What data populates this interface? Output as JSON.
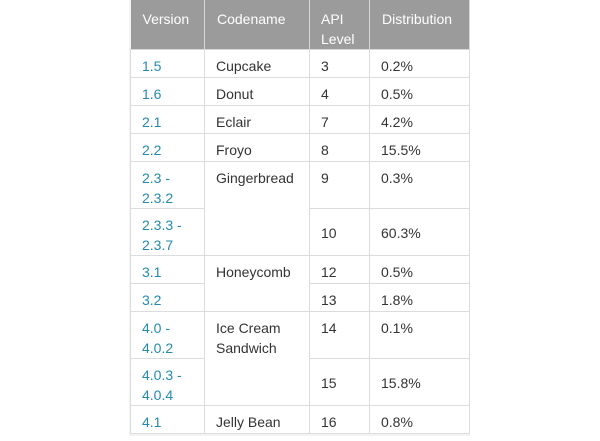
{
  "headers": {
    "version": "Version",
    "codename": "Codename",
    "api_level": "API Level",
    "distribution": "Distribution"
  },
  "rows": [
    {
      "version": "1.5",
      "codename": "Cupcake",
      "api": "3",
      "distribution": "0.2%"
    },
    {
      "version": "1.6",
      "codename": "Donut",
      "api": "4",
      "distribution": "0.5%"
    },
    {
      "version": "2.1",
      "codename": "Eclair",
      "api": "7",
      "distribution": "4.2%"
    },
    {
      "version": "2.2",
      "codename": "Froyo",
      "api": "8",
      "distribution": "15.5%"
    },
    {
      "version": "2.3 - 2.3.2",
      "codename": "Gingerbread",
      "api": "9",
      "distribution": "0.3%"
    },
    {
      "version": "2.3.3 - 2.3.7",
      "codename": "",
      "api": "10",
      "distribution": "60.3%"
    },
    {
      "version": "3.1",
      "codename": "Honeycomb",
      "api": "12",
      "distribution": "0.5%"
    },
    {
      "version": "3.2",
      "codename": "",
      "api": "13",
      "distribution": "1.8%"
    },
    {
      "version": "4.0 - 4.0.2",
      "codename": "Ice Cream Sandwich",
      "api": "14",
      "distribution": "0.1%"
    },
    {
      "version": "4.0.3 - 4.0.4",
      "codename": "",
      "api": "15",
      "distribution": "15.8%"
    },
    {
      "version": "4.1",
      "codename": "Jelly Bean",
      "api": "16",
      "distribution": "0.8%"
    }
  ],
  "colors": {
    "header_bg": "#9b9b9b",
    "version_link": "#258aaf",
    "text": "#333333"
  }
}
